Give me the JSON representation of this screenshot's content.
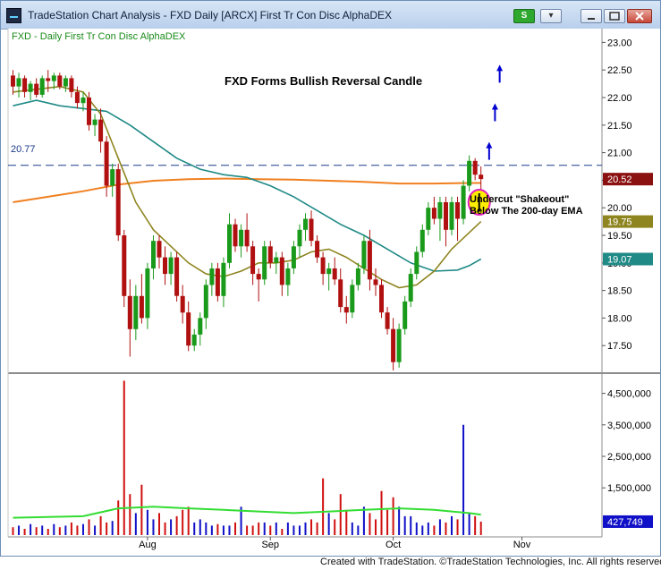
{
  "window": {
    "title": "TradeStation Chart Analysis - FXD Daily [ARCX] First Tr Con Disc AlphaDEX",
    "symbol_link_label": "S",
    "menu_label": "▾"
  },
  "chart_data": {
    "type": "candlestick",
    "legend_text": "FXD - Daily  First Tr Con Disc AlphaDEX",
    "headline": "FXD Forms Bullish Reversal Candle",
    "annotation_lines": [
      "Undercut \"Shakeout\"",
      "Below The 200-day EMA"
    ],
    "reference_line": {
      "value": 20.77,
      "label": "20.77"
    },
    "price_axis": {
      "min": 17.0,
      "max": 23.25,
      "ticks": [
        "23.00",
        "22.50",
        "22.00",
        "21.50",
        "21.00",
        "20.50",
        "20.00",
        "19.50",
        "19.00",
        "18.50",
        "18.00",
        "17.50"
      ]
    },
    "volume_axis": {
      "max": 5000000,
      "ticks": [
        "4,500,000",
        "3,500,000",
        "2,500,000",
        "1,500,000"
      ]
    },
    "x_labels": [
      {
        "bar": 23,
        "label": "Aug"
      },
      {
        "bar": 44,
        "label": "Sep"
      },
      {
        "bar": 65,
        "label": "Oct"
      },
      {
        "bar": 87,
        "label": "Nov"
      }
    ],
    "last_values": [
      {
        "name": "close",
        "label": "20.52",
        "value": 20.52,
        "color": "#8b1010"
      },
      {
        "name": "ema-20",
        "label": "19.75",
        "value": 19.75,
        "color": "#8e8520"
      },
      {
        "name": "ema-50",
        "label": "19.07",
        "value": 19.07,
        "color": "#1f8a86"
      }
    ],
    "volume_last": {
      "label": "427,749",
      "value": 427749,
      "color": "#1010c8"
    },
    "colors": {
      "up": "#1a9a1a",
      "down": "#b01010",
      "ema200": "#f08020",
      "ema20": "#8e8520",
      "ema50": "#1f8a86",
      "volume_up": "#1010c8",
      "volume_down": "#d01010",
      "volume_avg": "#33dd33",
      "arrow": "#0000d0",
      "highlight": "#ffee00",
      "ring": "#e020c0"
    },
    "series": [
      {
        "name": "ohlc",
        "values": [
          [
            22.4,
            22.5,
            22.05,
            22.2
          ],
          [
            22.2,
            22.45,
            22.0,
            22.35
          ],
          [
            22.35,
            22.4,
            22.0,
            22.1
          ],
          [
            22.1,
            22.3,
            21.95,
            22.25
          ],
          [
            22.25,
            22.35,
            22.0,
            22.05
          ],
          [
            22.05,
            22.4,
            22.0,
            22.35
          ],
          [
            22.35,
            22.5,
            22.1,
            22.3
          ],
          [
            22.3,
            22.45,
            22.15,
            22.4
          ],
          [
            22.4,
            22.45,
            22.15,
            22.2
          ],
          [
            22.2,
            22.4,
            22.1,
            22.35
          ],
          [
            22.35,
            22.4,
            22.0,
            22.1
          ],
          [
            22.1,
            22.2,
            21.8,
            21.9
          ],
          [
            21.9,
            22.1,
            21.75,
            22.0
          ],
          [
            22.0,
            22.1,
            21.4,
            21.5
          ],
          [
            21.5,
            21.7,
            21.3,
            21.6
          ],
          [
            21.6,
            21.8,
            21.0,
            21.2
          ],
          [
            21.2,
            21.3,
            20.2,
            20.4
          ],
          [
            20.4,
            20.8,
            20.2,
            20.7
          ],
          [
            20.7,
            20.8,
            19.4,
            19.5
          ],
          [
            19.5,
            19.6,
            18.2,
            18.4
          ],
          [
            18.4,
            18.7,
            17.3,
            17.8
          ],
          [
            17.8,
            18.6,
            17.6,
            18.4
          ],
          [
            18.4,
            18.8,
            17.9,
            18.0
          ],
          [
            18.0,
            19.0,
            17.8,
            18.9
          ],
          [
            18.9,
            19.5,
            18.7,
            19.4
          ],
          [
            19.4,
            19.5,
            18.9,
            19.1
          ],
          [
            19.1,
            19.3,
            18.6,
            18.8
          ],
          [
            18.8,
            19.2,
            18.6,
            19.1
          ],
          [
            19.1,
            19.2,
            18.3,
            18.4
          ],
          [
            18.4,
            18.6,
            17.9,
            18.1
          ],
          [
            18.1,
            18.3,
            17.4,
            17.5
          ],
          [
            17.5,
            17.8,
            17.4,
            17.7
          ],
          [
            17.7,
            18.1,
            17.5,
            18.0
          ],
          [
            18.0,
            18.7,
            17.8,
            18.6
          ],
          [
            18.6,
            19.0,
            18.4,
            18.9
          ],
          [
            18.9,
            19.0,
            18.3,
            18.4
          ],
          [
            18.4,
            19.1,
            18.2,
            19.0
          ],
          [
            19.0,
            19.9,
            18.9,
            19.7
          ],
          [
            19.7,
            19.8,
            19.2,
            19.3
          ],
          [
            19.3,
            19.7,
            19.1,
            19.6
          ],
          [
            19.6,
            19.9,
            19.2,
            19.3
          ],
          [
            19.3,
            19.4,
            18.6,
            18.8
          ],
          [
            18.8,
            18.9,
            18.3,
            18.7
          ],
          [
            18.7,
            19.4,
            18.6,
            19.3
          ],
          [
            19.3,
            19.4,
            18.9,
            19.0
          ],
          [
            19.0,
            19.2,
            18.8,
            19.1
          ],
          [
            19.1,
            19.2,
            18.4,
            18.6
          ],
          [
            18.6,
            19.0,
            18.4,
            18.9
          ],
          [
            18.9,
            19.4,
            18.8,
            19.3
          ],
          [
            19.3,
            19.7,
            19.1,
            19.6
          ],
          [
            19.6,
            19.9,
            19.4,
            19.8
          ],
          [
            19.8,
            19.95,
            19.3,
            19.4
          ],
          [
            19.4,
            19.5,
            19.0,
            19.1
          ],
          [
            19.1,
            19.2,
            18.6,
            18.8
          ],
          [
            18.8,
            19.0,
            18.5,
            18.9
          ],
          [
            18.9,
            19.1,
            18.6,
            18.7
          ],
          [
            18.7,
            18.9,
            18.1,
            18.2
          ],
          [
            18.2,
            18.4,
            17.9,
            18.1
          ],
          [
            18.1,
            18.7,
            18.0,
            18.6
          ],
          [
            18.6,
            19.0,
            18.5,
            18.9
          ],
          [
            18.9,
            19.5,
            18.8,
            19.4
          ],
          [
            19.4,
            19.6,
            18.5,
            18.7
          ],
          [
            18.7,
            18.9,
            18.4,
            18.6
          ],
          [
            18.6,
            18.7,
            18.0,
            18.1
          ],
          [
            18.1,
            18.2,
            17.7,
            17.8
          ],
          [
            17.8,
            18.0,
            17.05,
            17.2
          ],
          [
            17.2,
            17.9,
            17.1,
            17.8
          ],
          [
            17.8,
            18.4,
            17.7,
            18.3
          ],
          [
            18.3,
            18.9,
            18.2,
            18.8
          ],
          [
            18.8,
            19.3,
            18.7,
            19.2
          ],
          [
            19.2,
            19.7,
            19.1,
            19.6
          ],
          [
            19.6,
            20.1,
            19.5,
            20.0
          ],
          [
            20.0,
            20.2,
            19.7,
            19.8
          ],
          [
            19.8,
            20.2,
            19.4,
            20.1
          ],
          [
            20.1,
            20.2,
            19.3,
            19.6
          ],
          [
            19.6,
            20.2,
            19.5,
            20.1
          ],
          [
            20.1,
            20.2,
            19.4,
            19.8
          ],
          [
            19.8,
            20.5,
            19.7,
            20.4
          ],
          [
            20.4,
            20.95,
            20.3,
            20.85
          ],
          [
            20.85,
            20.9,
            20.5,
            20.6
          ],
          [
            20.6,
            20.75,
            20.0,
            20.52
          ]
        ]
      },
      {
        "name": "ema-200",
        "values": [
          [
            0,
            20.1
          ],
          [
            6,
            20.2
          ],
          [
            12,
            20.3
          ],
          [
            18,
            20.42
          ],
          [
            24,
            20.49
          ],
          [
            30,
            20.52
          ],
          [
            36,
            20.53
          ],
          [
            42,
            20.52
          ],
          [
            48,
            20.51
          ],
          [
            54,
            20.49
          ],
          [
            60,
            20.47
          ],
          [
            66,
            20.44
          ],
          [
            72,
            20.44
          ],
          [
            78,
            20.45
          ],
          [
            80,
            20.45
          ]
        ]
      },
      {
        "name": "ema-50",
        "values": [
          [
            0,
            21.85
          ],
          [
            4,
            21.95
          ],
          [
            8,
            21.85
          ],
          [
            12,
            21.8
          ],
          [
            16,
            21.75
          ],
          [
            20,
            21.5
          ],
          [
            24,
            21.2
          ],
          [
            28,
            20.9
          ],
          [
            32,
            20.7
          ],
          [
            36,
            20.6
          ],
          [
            40,
            20.55
          ],
          [
            44,
            20.4
          ],
          [
            48,
            20.2
          ],
          [
            52,
            19.95
          ],
          [
            56,
            19.7
          ],
          [
            60,
            19.5
          ],
          [
            64,
            19.25
          ],
          [
            68,
            19.0
          ],
          [
            72,
            18.85
          ],
          [
            76,
            18.87
          ],
          [
            78,
            18.95
          ],
          [
            80,
            19.07
          ]
        ]
      },
      {
        "name": "ema-20",
        "values": [
          [
            0,
            22.1
          ],
          [
            4,
            22.15
          ],
          [
            8,
            22.2
          ],
          [
            12,
            22.1
          ],
          [
            15,
            21.7
          ],
          [
            18,
            20.9
          ],
          [
            21,
            20.1
          ],
          [
            24,
            19.6
          ],
          [
            27,
            19.3
          ],
          [
            30,
            19.0
          ],
          [
            33,
            18.8
          ],
          [
            36,
            18.75
          ],
          [
            39,
            18.85
          ],
          [
            42,
            19.0
          ],
          [
            45,
            19.0
          ],
          [
            48,
            19.05
          ],
          [
            51,
            19.2
          ],
          [
            54,
            19.25
          ],
          [
            57,
            19.1
          ],
          [
            60,
            18.9
          ],
          [
            63,
            18.7
          ],
          [
            66,
            18.55
          ],
          [
            69,
            18.6
          ],
          [
            72,
            18.85
          ],
          [
            75,
            19.25
          ],
          [
            78,
            19.55
          ],
          [
            80,
            19.75
          ]
        ]
      },
      {
        "name": "volume",
        "values": [
          [
            0,
            0.25
          ],
          [
            1,
            0.3
          ],
          [
            2,
            0.2
          ],
          [
            3,
            0.35
          ],
          [
            4,
            0.25
          ],
          [
            5,
            0.3
          ],
          [
            6,
            0.2
          ],
          [
            7,
            0.35
          ],
          [
            8,
            0.25
          ],
          [
            9,
            0.3
          ],
          [
            10,
            0.4
          ],
          [
            11,
            0.3
          ],
          [
            12,
            0.35
          ],
          [
            13,
            0.5
          ],
          [
            14,
            0.3
          ],
          [
            15,
            0.6
          ],
          [
            16,
            0.4
          ],
          [
            17,
            0.45
          ],
          [
            18,
            1.1
          ],
          [
            19,
            4.9
          ],
          [
            20,
            1.3
          ],
          [
            21,
            0.7
          ],
          [
            22,
            1.6
          ],
          [
            23,
            0.8
          ],
          [
            24,
            0.5
          ],
          [
            25,
            0.7
          ],
          [
            26,
            0.4
          ],
          [
            27,
            0.5
          ],
          [
            28,
            0.6
          ],
          [
            29,
            0.8
          ],
          [
            30,
            0.9
          ],
          [
            31,
            0.4
          ],
          [
            32,
            0.5
          ],
          [
            33,
            0.4
          ],
          [
            34,
            0.3
          ],
          [
            35,
            0.35
          ],
          [
            36,
            0.3
          ],
          [
            37,
            0.3
          ],
          [
            38,
            0.4
          ],
          [
            39,
            0.9
          ],
          [
            40,
            0.3
          ],
          [
            41,
            0.3
          ],
          [
            42,
            0.4
          ],
          [
            43,
            0.4
          ],
          [
            44,
            0.3
          ],
          [
            45,
            0.4
          ],
          [
            46,
            0.2
          ],
          [
            47,
            0.4
          ],
          [
            48,
            0.3
          ],
          [
            49,
            0.3
          ],
          [
            50,
            0.4
          ],
          [
            51,
            0.5
          ],
          [
            52,
            0.4
          ],
          [
            53,
            1.8
          ],
          [
            54,
            0.7
          ],
          [
            55,
            0.5
          ],
          [
            56,
            1.3
          ],
          [
            57,
            0.8
          ],
          [
            58,
            0.4
          ],
          [
            59,
            0.3
          ],
          [
            60,
            0.9
          ],
          [
            61,
            0.7
          ],
          [
            62,
            0.5
          ],
          [
            63,
            1.4
          ],
          [
            64,
            0.8
          ],
          [
            65,
            1.2
          ],
          [
            66,
            0.9
          ],
          [
            67,
            0.6
          ],
          [
            68,
            0.6
          ],
          [
            69,
            0.4
          ],
          [
            70,
            0.3
          ],
          [
            71,
            0.4
          ],
          [
            72,
            0.3
          ],
          [
            73,
            0.5
          ],
          [
            74,
            0.4
          ],
          [
            75,
            0.6
          ],
          [
            76,
            0.5
          ],
          [
            77,
            3.5
          ],
          [
            78,
            0.7
          ],
          [
            79,
            0.6
          ],
          [
            80,
            0.43
          ]
        ]
      },
      {
        "name": "volume-average",
        "values": [
          [
            0,
            0.55
          ],
          [
            12,
            0.6
          ],
          [
            18,
            0.85
          ],
          [
            24,
            0.9
          ],
          [
            30,
            0.85
          ],
          [
            36,
            0.8
          ],
          [
            42,
            0.75
          ],
          [
            48,
            0.7
          ],
          [
            54,
            0.75
          ],
          [
            60,
            0.8
          ],
          [
            66,
            0.85
          ],
          [
            72,
            0.8
          ],
          [
            78,
            0.7
          ],
          [
            80,
            0.65
          ]
        ]
      }
    ]
  },
  "footer": {
    "credit": "Created with TradeStation. ©TradeStation Technologies, Inc. All rights reserved."
  }
}
